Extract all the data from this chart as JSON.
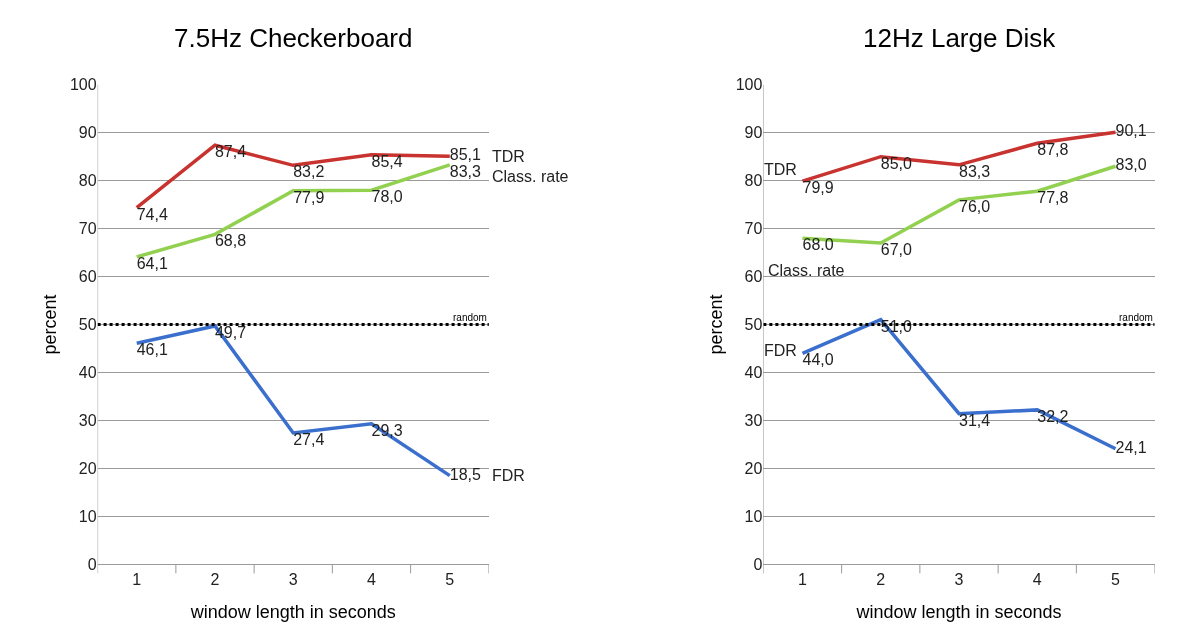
{
  "chart_data": [
    {
      "type": "line",
      "title": "7.5Hz Checkerboard",
      "xlabel": "window length in seconds",
      "ylabel": "percent",
      "categories": [
        "1",
        "2",
        "3",
        "4",
        "5"
      ],
      "ylim": [
        0,
        100
      ],
      "yticks": [
        0,
        10,
        20,
        30,
        40,
        50,
        60,
        70,
        80,
        90,
        100
      ],
      "grid": "y",
      "legend": false,
      "marker": "none",
      "line_style": "solid",
      "series": [
        {
          "name": "TDR",
          "color": "#c8322f",
          "values": [
            74.4,
            87.4,
            83.2,
            85.4,
            85.1
          ],
          "value_labels": [
            "74,4",
            "87,4",
            "83,2",
            "85,4",
            "85,1"
          ]
        },
        {
          "name": "Class. rate",
          "color": "#92d050",
          "values": [
            64.1,
            68.8,
            77.9,
            78.0,
            83.3
          ],
          "value_labels": [
            "64,1",
            "68,8",
            "77,9",
            "78,0",
            "83,3"
          ]
        },
        {
          "name": "FDR",
          "color": "#3a6fce",
          "values": [
            46.1,
            49.7,
            27.4,
            29.3,
            18.5
          ],
          "value_labels": [
            "46,1",
            "49,7",
            "27,4",
            "29,3",
            "18,5"
          ]
        }
      ],
      "ref_lines": [
        {
          "axis": "y",
          "value": 50,
          "label": "random",
          "color": "#000000",
          "line_style": "dotted"
        }
      ]
    },
    {
      "type": "line",
      "title": "12Hz Large Disk",
      "xlabel": "window length in seconds",
      "ylabel": "percent",
      "categories": [
        "1",
        "2",
        "3",
        "4",
        "5"
      ],
      "ylim": [
        0,
        100
      ],
      "yticks": [
        0,
        10,
        20,
        30,
        40,
        50,
        60,
        70,
        80,
        90,
        100
      ],
      "grid": "y",
      "legend": false,
      "marker": "none",
      "line_style": "solid",
      "series": [
        {
          "name": "TDR",
          "color": "#c8322f",
          "values": [
            79.9,
            85.0,
            83.3,
            87.8,
            90.1
          ],
          "value_labels": [
            "79,9",
            "85,0",
            "83,3",
            "87,8",
            "90,1"
          ]
        },
        {
          "name": "Class. rate",
          "color": "#92d050",
          "values": [
            68.0,
            67.0,
            76.0,
            77.8,
            83.0
          ],
          "value_labels": [
            "68.0",
            "67,0",
            "76,0",
            "77,8",
            "83,0"
          ]
        },
        {
          "name": "FDR",
          "color": "#3a6fce",
          "values": [
            44.0,
            51.0,
            31.4,
            32.2,
            24.1
          ],
          "value_labels": [
            "44,0",
            "51,0",
            "31,4",
            "32,2",
            "24,1"
          ]
        }
      ],
      "ref_lines": [
        {
          "axis": "y",
          "value": 50,
          "label": "random",
          "color": "#000000",
          "line_style": "dotted"
        }
      ]
    }
  ]
}
